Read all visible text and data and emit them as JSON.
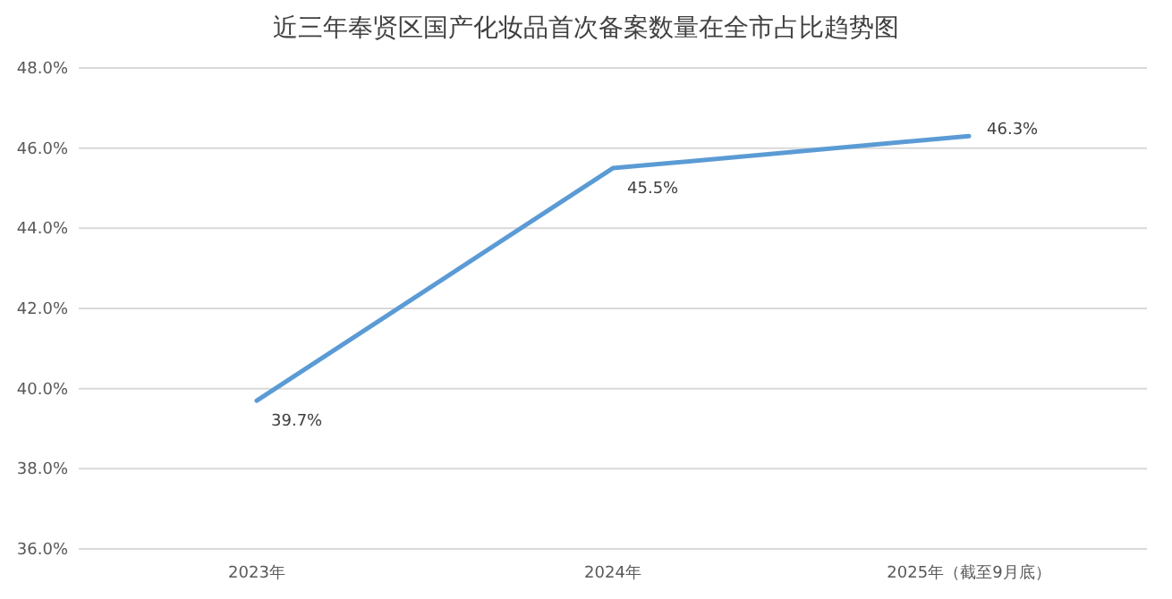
{
  "chart_data": {
    "type": "line",
    "title": "近三年奉贤区国产化妆品首次备案数量在全市占比趋势图",
    "categories": [
      "2023年",
      "2024年",
      "2025年（截至9月底）"
    ],
    "series": [
      {
        "color": "#5b9bd5",
        "values": [
          39.7,
          45.5,
          46.3
        ],
        "value_labels": [
          "39.7%",
          "45.5%",
          "46.3%"
        ]
      }
    ],
    "ylim": [
      36,
      48
    ],
    "yticks": [
      {
        "value": 36,
        "label": "36.0%"
      },
      {
        "value": 38,
        "label": "38.0%"
      },
      {
        "value": 40,
        "label": "40.0%"
      },
      {
        "value": 42,
        "label": "42.0%"
      },
      {
        "value": 44,
        "label": "44.0%"
      },
      {
        "value": 46,
        "label": "46.0%"
      },
      {
        "value": 48,
        "label": "48.0%"
      }
    ],
    "grid": "y",
    "marker": "none",
    "line_style": "solid"
  }
}
